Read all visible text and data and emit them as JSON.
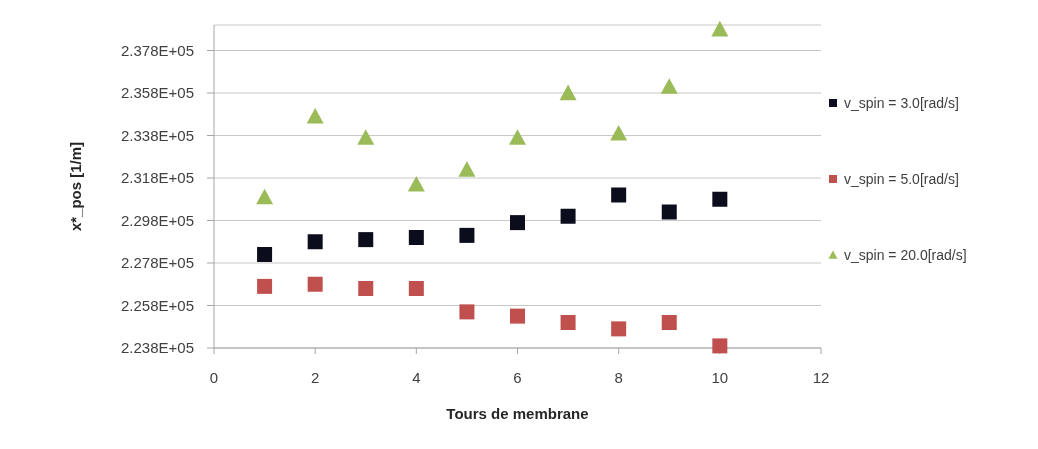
{
  "chart_data": {
    "type": "scatter",
    "xlabel": "Tours de membrane",
    "ylabel": "x*_pos [1/m]",
    "x": [
      1,
      2,
      3,
      4,
      5,
      6,
      7,
      8,
      9,
      10
    ],
    "xlim": [
      0,
      12
    ],
    "xticks": [
      0,
      2,
      4,
      6,
      8,
      10,
      12
    ],
    "ylim": [
      223800,
      239000
    ],
    "yticks": [
      {
        "value": 223800,
        "label": "2.238E+05"
      },
      {
        "value": 225800,
        "label": "2.258E+05"
      },
      {
        "value": 227800,
        "label": "2.278E+05"
      },
      {
        "value": 229800,
        "label": "2.298E+05"
      },
      {
        "value": 231800,
        "label": "2.318E+05"
      },
      {
        "value": 233800,
        "label": "2.338E+05"
      },
      {
        "value": 235800,
        "label": "2.358E+05"
      },
      {
        "value": 237800,
        "label": "2.378E+05"
      }
    ],
    "grid": "y",
    "legend": "right",
    "marker": "square",
    "series": [
      {
        "name": "v_spin = 3.0[rad/s]",
        "color": "#0b0d1c",
        "values": [
          228200,
          228800,
          228900,
          229000,
          229100,
          229700,
          230000,
          231000,
          230200,
          230800
        ]
      },
      {
        "name": "v_spin = 5.0[rad/s]",
        "color": "#c0504d",
        "values": [
          226700,
          226800,
          226600,
          226600,
          225500,
          225300,
          225000,
          224700,
          225000,
          223900
        ]
      },
      {
        "name": "v_spin = 20.0[rad/s]",
        "color": "#9bbb59",
        "marker": "triangle",
        "values": [
          230900,
          234700,
          233700,
          231500,
          232200,
          233700,
          235800,
          233900,
          236100,
          238800
        ]
      }
    ]
  }
}
